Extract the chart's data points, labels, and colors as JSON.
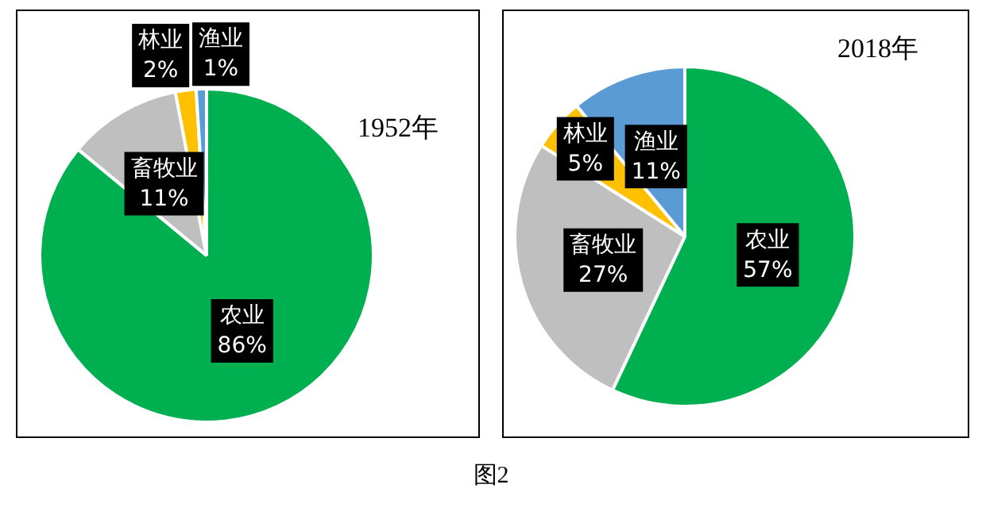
{
  "chart_data": [
    {
      "type": "pie",
      "title": "1952年",
      "categories": [
        "农业",
        "畜牧业",
        "林业",
        "渔业"
      ],
      "values": [
        86,
        11,
        2,
        1
      ],
      "value_labels": [
        "86%",
        "11%",
        "2%",
        "1%"
      ],
      "colors": [
        "#00b050",
        "#bfbfbf",
        "#ffc000",
        "#5b9bd5"
      ],
      "legend": false
    },
    {
      "type": "pie",
      "title": "2018年",
      "categories": [
        "农业",
        "畜牧业",
        "林业",
        "渔业"
      ],
      "values": [
        57,
        27,
        5,
        11
      ],
      "value_labels": [
        "57%",
        "27%",
        "5%",
        "11%"
      ],
      "colors": [
        "#00b050",
        "#bfbfbf",
        "#ffc000",
        "#5b9bd5"
      ],
      "legend": false,
      "annotations": [
        "图2"
      ]
    }
  ]
}
